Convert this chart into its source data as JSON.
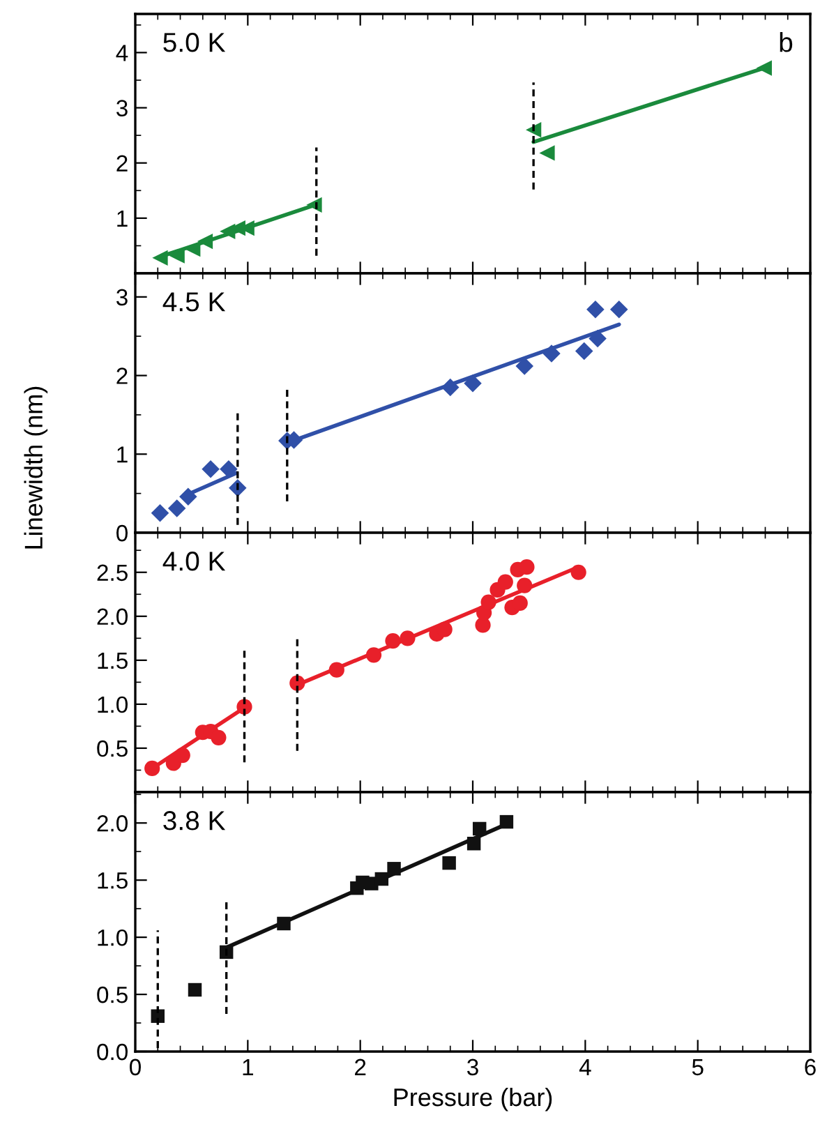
{
  "chart_data": [
    {
      "type": "scatter",
      "annotations": [
        "5.0 K",
        "b"
      ],
      "xlim": [
        0,
        6
      ],
      "xticks": [
        0,
        1,
        2,
        3,
        4,
        5,
        6
      ],
      "ylim": [
        0,
        4.7
      ],
      "yticks": [
        1,
        2,
        3,
        4
      ],
      "tick_labels": "y",
      "grid": false,
      "series": [
        {
          "marker": "triangle",
          "color": "#1a8a3c",
          "x": [
            0.22,
            0.37,
            0.51,
            0.62,
            0.82,
            0.91,
            0.99,
            1.59,
            3.54,
            3.66,
            5.59
          ],
          "values": [
            0.28,
            0.32,
            0.44,
            0.58,
            0.76,
            0.82,
            0.82,
            1.24,
            2.6,
            2.18,
            3.72
          ]
        },
        {
          "type": "line",
          "marker": "none",
          "line_style": "solid",
          "color": "#1a8a3c",
          "x": [
            0.22,
            1.6
          ],
          "values": [
            0.3,
            1.24
          ]
        },
        {
          "type": "line",
          "marker": "none",
          "line_style": "solid",
          "color": "#1a8a3c",
          "x": [
            3.54,
            5.59
          ],
          "values": [
            2.38,
            3.72
          ]
        },
        {
          "type": "line",
          "marker": "none",
          "line_style": "dashed",
          "color": "#000000",
          "x": [
            1.61,
            1.61
          ],
          "values": [
            0.32,
            2.28
          ]
        },
        {
          "type": "line",
          "marker": "none",
          "line_style": "dashed",
          "color": "#000000",
          "x": [
            3.54,
            3.54
          ],
          "values": [
            1.52,
            3.46
          ]
        }
      ]
    },
    {
      "type": "scatter",
      "annotations": [
        "4.5 K"
      ],
      "ylabel": "Linewidth (nm)",
      "xlim": [
        0,
        6
      ],
      "xticks": [
        0,
        1,
        2,
        3,
        4,
        5,
        6
      ],
      "ylim": [
        0,
        3.3
      ],
      "yticks": [
        0,
        1,
        2,
        3
      ],
      "tick_labels": "y",
      "grid": false,
      "series": [
        {
          "marker": "diamond",
          "color": "#3050a8",
          "x": [
            0.22,
            0.37,
            0.47,
            0.67,
            0.83,
            0.91,
            1.35,
            1.41,
            2.8,
            3.0,
            3.46,
            3.7,
            3.99,
            4.09,
            4.11,
            4.3
          ],
          "values": [
            0.25,
            0.31,
            0.46,
            0.81,
            0.81,
            0.57,
            1.17,
            1.18,
            1.85,
            1.9,
            2.12,
            2.28,
            2.31,
            2.84,
            2.47,
            2.84
          ]
        },
        {
          "type": "line",
          "marker": "none",
          "line_style": "solid",
          "color": "#3050a8",
          "x": [
            0.47,
            0.9
          ],
          "values": [
            0.49,
            0.76
          ]
        },
        {
          "type": "line",
          "marker": "none",
          "line_style": "solid",
          "color": "#3050a8",
          "x": [
            1.4,
            4.3
          ],
          "values": [
            1.17,
            2.65
          ]
        },
        {
          "type": "line",
          "marker": "none",
          "line_style": "dashed",
          "color": "#000000",
          "x": [
            0.91,
            0.91
          ],
          "values": [
            0.1,
            1.54
          ]
        },
        {
          "type": "line",
          "marker": "none",
          "line_style": "dashed",
          "color": "#000000",
          "x": [
            1.35,
            1.35
          ],
          "values": [
            0.4,
            1.85
          ]
        }
      ]
    },
    {
      "type": "scatter",
      "annotations": [
        "4.0 K"
      ],
      "xlim": [
        0,
        6
      ],
      "xticks": [
        0,
        1,
        2,
        3,
        4,
        5,
        6
      ],
      "ylim": [
        0,
        2.95
      ],
      "yticks": [
        0.5,
        {
          "value": 1,
          "label": "1.0"
        },
        1.5,
        {
          "value": 2,
          "label": "2.0"
        },
        2.5
      ],
      "tick_labels": "y",
      "grid": false,
      "series": [
        {
          "marker": "circle",
          "color": "#e8202a",
          "x": [
            0.15,
            0.34,
            0.42,
            0.6,
            0.67,
            0.74,
            0.97,
            1.44,
            1.79,
            2.12,
            2.29,
            2.42,
            2.68,
            2.75,
            3.09,
            3.1,
            3.14,
            3.22,
            3.29,
            3.35,
            3.42,
            3.4,
            3.48,
            3.46,
            3.94
          ],
          "values": [
            0.27,
            0.33,
            0.42,
            0.68,
            0.69,
            0.62,
            0.97,
            1.24,
            1.39,
            1.56,
            1.72,
            1.75,
            1.8,
            1.85,
            1.9,
            2.04,
            2.16,
            2.3,
            2.39,
            2.1,
            2.15,
            2.53,
            2.56,
            2.35,
            2.5
          ]
        },
        {
          "type": "line",
          "marker": "none",
          "line_style": "solid",
          "color": "#e8202a",
          "x": [
            0.15,
            0.97
          ],
          "values": [
            0.27,
            0.96
          ]
        },
        {
          "type": "line",
          "marker": "none",
          "line_style": "solid",
          "color": "#e8202a",
          "x": [
            1.44,
            3.92
          ],
          "values": [
            1.22,
            2.55
          ]
        },
        {
          "type": "line",
          "marker": "none",
          "line_style": "dashed",
          "color": "#000000",
          "x": [
            0.97,
            0.97
          ],
          "values": [
            0.34,
            1.62
          ]
        },
        {
          "type": "line",
          "marker": "none",
          "line_style": "dashed",
          "color": "#000000",
          "x": [
            1.44,
            1.44
          ],
          "values": [
            0.47,
            1.75
          ]
        }
      ]
    },
    {
      "type": "scatter",
      "annotations": [
        "3.8 K"
      ],
      "xlabel": "Pressure (bar)",
      "xlim": [
        0,
        6
      ],
      "xticks": [
        0,
        1,
        2,
        3,
        4,
        5,
        6
      ],
      "ylim": [
        0,
        2.27
      ],
      "yticks": [
        {
          "value": 0,
          "label": "0.0"
        },
        0.5,
        {
          "value": 1,
          "label": "1.0"
        },
        1.5,
        {
          "value": 2,
          "label": "2.0"
        }
      ],
      "grid": false,
      "series": [
        {
          "marker": "square",
          "color": "#111111",
          "x": [
            0.2,
            0.53,
            0.81,
            1.32,
            1.97,
            2.02,
            2.1,
            2.19,
            2.3,
            2.79,
            3.01,
            3.06,
            3.3
          ],
          "values": [
            0.31,
            0.54,
            0.87,
            1.12,
            1.43,
            1.48,
            1.47,
            1.51,
            1.6,
            1.65,
            1.82,
            1.95,
            2.01
          ]
        },
        {
          "type": "line",
          "marker": "none",
          "line_style": "solid",
          "color": "#111111",
          "x": [
            0.81,
            3.3
          ],
          "values": [
            0.91,
            1.99
          ]
        },
        {
          "type": "line",
          "marker": "none",
          "line_style": "dashed",
          "color": "#000000",
          "x": [
            0.2,
            0.2
          ],
          "values": [
            0.03,
            1.06
          ]
        },
        {
          "type": "line",
          "marker": "none",
          "line_style": "dashed",
          "color": "#000000",
          "x": [
            0.81,
            0.81
          ],
          "values": [
            0.33,
            1.31
          ]
        }
      ]
    }
  ]
}
